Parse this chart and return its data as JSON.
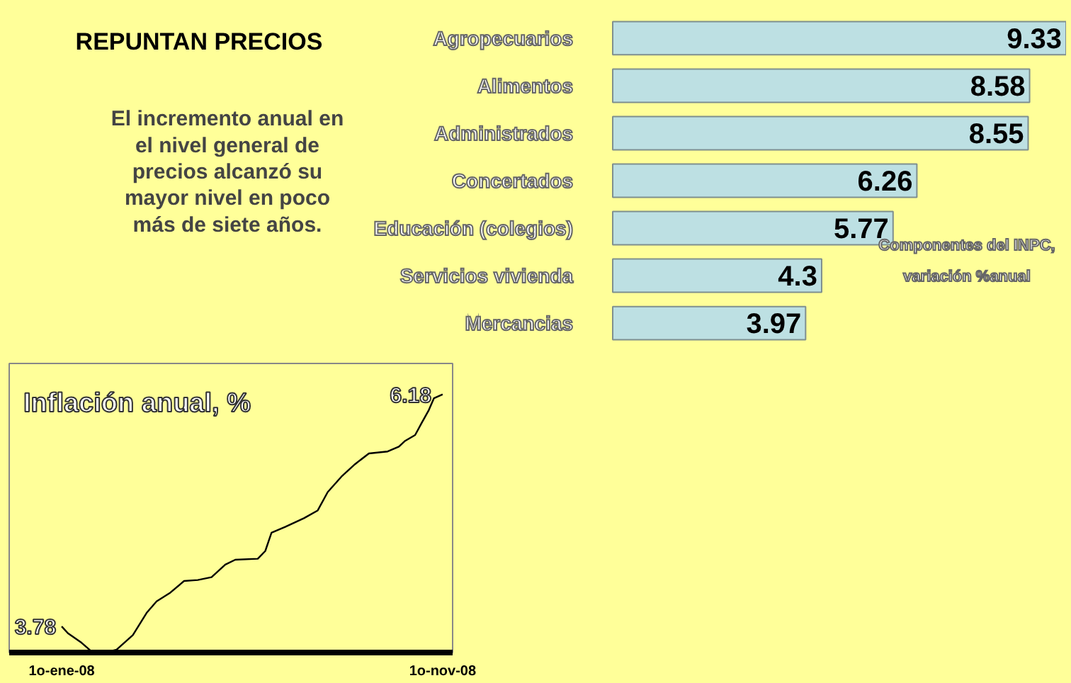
{
  "chart_data": [
    {
      "type": "bar",
      "orientation": "horizontal",
      "title": "REPUNTAN PRECIOS",
      "subtitle": "El incremento anual en\nel nivel general de\nprecios alcanzó su\nmayor nivel en poco\nmás de siete años.",
      "categories": [
        "Agropecuarios",
        "Alimentos",
        "Administrados",
        "Concertados",
        "Educación (colegios)",
        "Servicios vivienda",
        "Mercancias"
      ],
      "values": [
        9.33,
        8.58,
        8.55,
        6.26,
        5.77,
        4.3,
        3.97
      ],
      "color": "#bde0e3",
      "data_labels": true,
      "annotations": [
        "Componentes del INPC,\nvariación %anual"
      ]
    },
    {
      "type": "line",
      "title": "Inflación anual, %",
      "x": [
        "2008-01-01",
        "2008-01-06",
        "2008-01-17",
        "2008-01-25",
        "2008-02-05",
        "2008-02-14",
        "2008-02-27",
        "2008-03-09",
        "2008-03-17",
        "2008-03-28",
        "2008-04-08",
        "2008-04-19",
        "2008-04-30",
        "2008-05-11",
        "2008-05-19",
        "2008-06-06",
        "2008-06-12",
        "2008-06-17",
        "2008-06-28",
        "2008-07-13",
        "2008-07-24",
        "2008-08-01",
        "2008-08-12",
        "2008-08-23",
        "2008-09-03",
        "2008-09-18",
        "2008-09-27",
        "2008-10-02",
        "2008-10-10",
        "2008-10-15",
        "2008-10-21",
        "2008-10-25",
        "2008-11-01"
      ],
      "series": [
        {
          "color": "#000000",
          "values": [
            3.78,
            3.71,
            3.61,
            3.52,
            3.51,
            3.54,
            3.69,
            3.92,
            4.04,
            4.13,
            4.25,
            4.26,
            4.29,
            4.42,
            4.47,
            4.48,
            4.56,
            4.75,
            4.81,
            4.9,
            4.98,
            5.17,
            5.33,
            5.46,
            5.57,
            5.59,
            5.64,
            5.7,
            5.76,
            5.88,
            6.02,
            6.14,
            6.18
          ],
          "value_labels": [
            "3.78",
            null,
            null,
            null,
            null,
            null,
            null,
            null,
            null,
            null,
            null,
            null,
            null,
            null,
            null,
            null,
            null,
            null,
            null,
            null,
            null,
            null,
            null,
            null,
            null,
            null,
            null,
            null,
            null,
            null,
            null,
            null,
            "6.18"
          ]
        }
      ],
      "xlim": [
        "2007-11-20",
        "2008-11-09"
      ],
      "xticks": [
        {
          "value": "2008-01-01",
          "label": "1o-ene-08"
        },
        {
          "value": "2008-11-01",
          "label": "1o-nov-08"
        }
      ],
      "tick_labels": "x"
    }
  ]
}
